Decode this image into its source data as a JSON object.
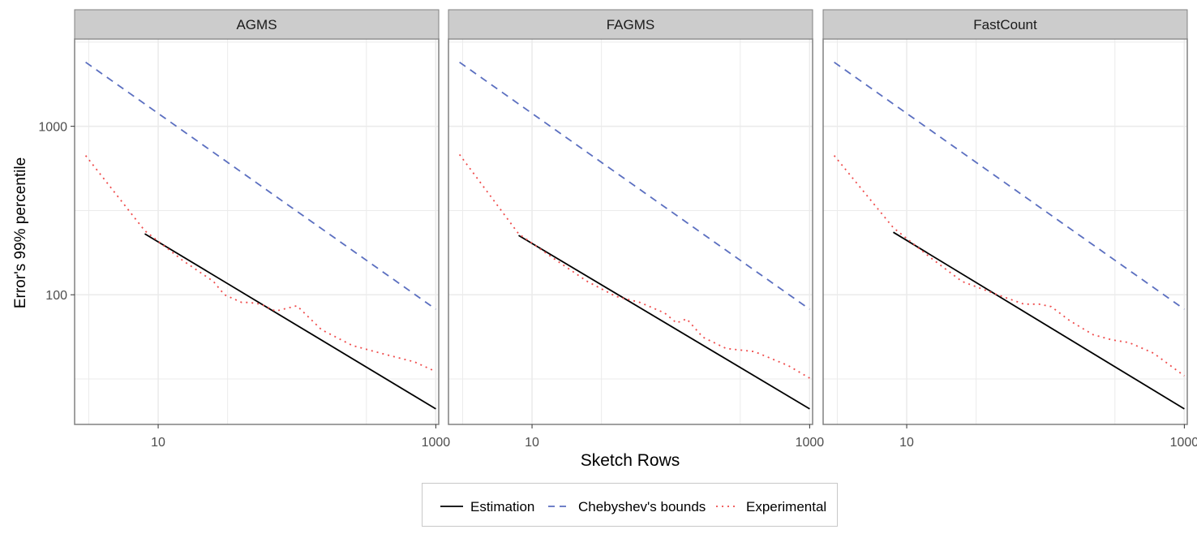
{
  "chart_data": {
    "type": "line",
    "xlabel": "Sketch Rows",
    "ylabel": "Error's 99% percentile",
    "x_scale": "log10",
    "y_scale": "log10",
    "xlim": [
      2.5,
      1050
    ],
    "ylim": [
      17,
      3300
    ],
    "x_ticks": [
      10,
      1000
    ],
    "x_tick_labels": [
      "10",
      "1000"
    ],
    "y_ticks": [
      100,
      1000
    ],
    "y_tick_labels": [
      "100",
      "1000"
    ],
    "grid": true,
    "legend_position": "bottom",
    "colors": {
      "estimation": "#000000",
      "chebyshev": "#5b6fc0",
      "experimental": "#ef4c4c",
      "strip": "#cccccc",
      "panel_border": "#808080",
      "grid": "#ebebeb"
    },
    "legend": [
      {
        "key": "estimation",
        "label": "Estimation",
        "dash": "solid"
      },
      {
        "key": "chebyshev",
        "label": "Chebyshev's bounds",
        "dash": "dashed"
      },
      {
        "key": "experimental",
        "label": "Experimental",
        "dash": "dotted"
      }
    ],
    "panels": [
      {
        "title": "AGMS",
        "series": [
          {
            "key": "chebyshev",
            "x": [
              3,
              1000
            ],
            "y": [
              2400,
              82
            ]
          },
          {
            "key": "estimation",
            "x": [
              8,
              1000
            ],
            "y": [
              230,
              21
            ]
          },
          {
            "key": "experimental",
            "x": [
              3,
              8,
              15,
              25,
              30,
              40,
              45,
              55,
              70,
              100,
              150,
              250,
              400,
              700,
              1000
            ],
            "y": [
              670,
              240,
              160,
              120,
              100,
              90,
              90,
              88,
              80,
              86,
              62,
              50,
              45,
              40,
              35
            ]
          }
        ]
      },
      {
        "title": "FAGMS",
        "series": [
          {
            "key": "chebyshev",
            "x": [
              3,
              1000
            ],
            "y": [
              2400,
              82
            ]
          },
          {
            "key": "estimation",
            "x": [
              8,
              1000
            ],
            "y": [
              225,
              21
            ]
          },
          {
            "key": "experimental",
            "x": [
              3,
              8,
              15,
              25,
              40,
              60,
              90,
              110,
              130,
              170,
              250,
              400,
              700,
              1000
            ],
            "y": [
              680,
              230,
              160,
              120,
              98,
              90,
              78,
              68,
              72,
              56,
              48,
              46,
              38,
              32
            ]
          }
        ]
      },
      {
        "title": "FastCount",
        "series": [
          {
            "key": "chebyshev",
            "x": [
              3,
              1000
            ],
            "y": [
              2400,
              82
            ]
          },
          {
            "key": "estimation",
            "x": [
              8,
              1000
            ],
            "y": [
              235,
              21
            ]
          },
          {
            "key": "experimental",
            "x": [
              3,
              8,
              15,
              25,
              45,
              70,
              90,
              110,
              150,
              220,
              300,
              400,
              600,
              1000
            ],
            "y": [
              670,
              250,
              165,
              120,
              100,
              88,
              88,
              85,
              70,
              58,
              54,
              52,
              45,
              33
            ]
          }
        ]
      }
    ]
  }
}
